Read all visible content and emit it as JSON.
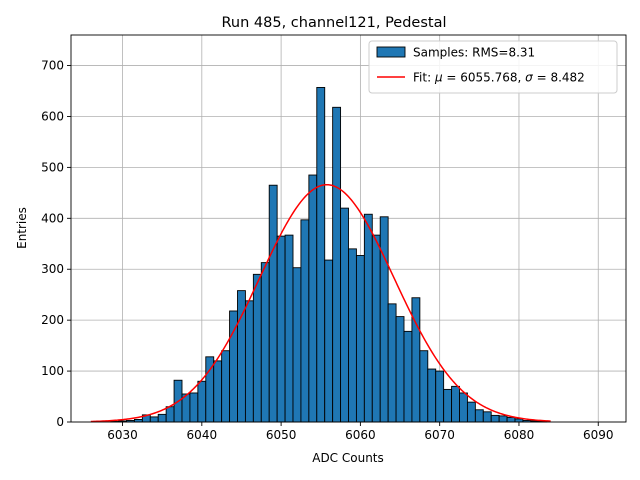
{
  "chart_data": {
    "type": "bar",
    "title": "Run 485, channel121, Pedestal",
    "xlabel": "ADC Counts",
    "ylabel": "Entries",
    "xlim": [
      6023.5,
      6093.5
    ],
    "ylim": [
      0,
      760
    ],
    "xticks": [
      6030,
      6040,
      6050,
      6060,
      6070,
      6080,
      6090
    ],
    "yticks": [
      0,
      100,
      200,
      300,
      400,
      500,
      600,
      700
    ],
    "grid": true,
    "legend_position": "top-right",
    "bin_width": 1,
    "histogram": {
      "name": "Samples: RMS=8.31",
      "color": "#1f77b4",
      "edgecolor": "#000000",
      "x": [
        6026,
        6027,
        6028,
        6029,
        6030,
        6031,
        6032,
        6033,
        6034,
        6035,
        6036,
        6037,
        6038,
        6039,
        6040,
        6041,
        6042,
        6043,
        6044,
        6045,
        6046,
        6047,
        6048,
        6049,
        6050,
        6051,
        6052,
        6053,
        6054,
        6055,
        6056,
        6057,
        6058,
        6059,
        6060,
        6061,
        6062,
        6063,
        6064,
        6065,
        6066,
        6067,
        6068,
        6069,
        6070,
        6071,
        6072,
        6073,
        6074,
        6075,
        6076,
        6077,
        6078,
        6079,
        6080,
        6081,
        6082,
        6083,
        6084
      ],
      "values": [
        0,
        0,
        0,
        1,
        2,
        3,
        5,
        14,
        10,
        15,
        30,
        82,
        55,
        57,
        80,
        128,
        120,
        140,
        218,
        258,
        238,
        290,
        313,
        465,
        365,
        367,
        303,
        397,
        485,
        657,
        318,
        618,
        420,
        340,
        327,
        408,
        367,
        403,
        232,
        207,
        178,
        244,
        140,
        104,
        100,
        64,
        70,
        57,
        39,
        24,
        20,
        13,
        12,
        9,
        6,
        3,
        2,
        1,
        0
      ]
    },
    "fit": {
      "name": "Fit: $\\mu$ = 6055.768, $\\sigma$ = 8.482",
      "color": "#ff0000",
      "mu": 6055.768,
      "sigma": 8.482,
      "amplitude": 466,
      "x_range": [
        6026,
        6084
      ]
    },
    "legend": [
      {
        "label_prefix": "Samples: RMS=8.31"
      },
      {
        "label_prefix": "Fit: ",
        "mu_symbol": "μ",
        "mu_text": " = 6055.768, ",
        "sigma_symbol": "σ",
        "sigma_text": " = 8.482"
      }
    ]
  }
}
